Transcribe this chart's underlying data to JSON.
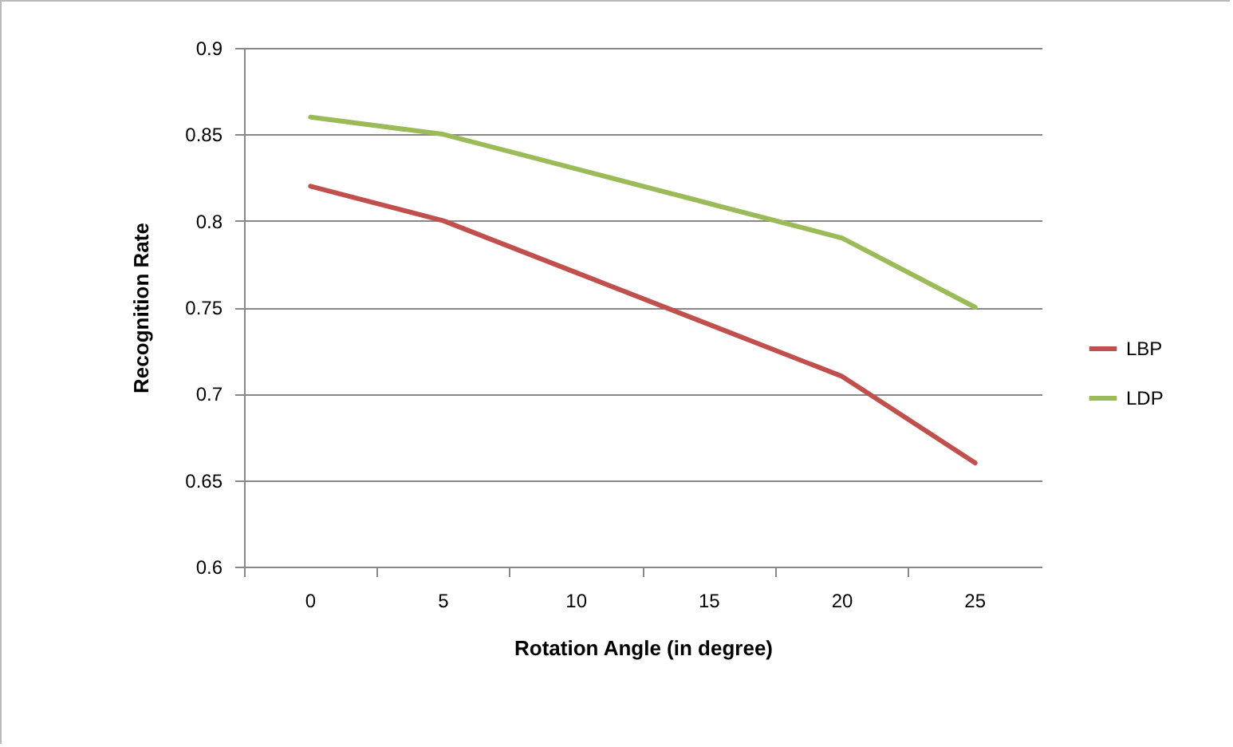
{
  "chart_data": {
    "type": "line",
    "xlabel": "Rotation Angle (in degree)",
    "ylabel": "Recognition Rate",
    "categories": [
      "0",
      "5",
      "10",
      "15",
      "20",
      "25"
    ],
    "series": [
      {
        "name": "LBP",
        "color": "#c0504d",
        "values": [
          0.82,
          0.8,
          0.77,
          0.74,
          0.71,
          0.66
        ]
      },
      {
        "name": "LDP",
        "color": "#9bbb59",
        "values": [
          0.86,
          0.85,
          0.83,
          0.81,
          0.79,
          0.75
        ]
      }
    ],
    "ylim": [
      0.6,
      0.9
    ],
    "yticks": [
      0.6,
      0.65,
      0.7,
      0.75,
      0.8,
      0.85,
      0.9
    ],
    "grid": "y",
    "legend": "right",
    "marker": "none",
    "line_style": "solid"
  }
}
